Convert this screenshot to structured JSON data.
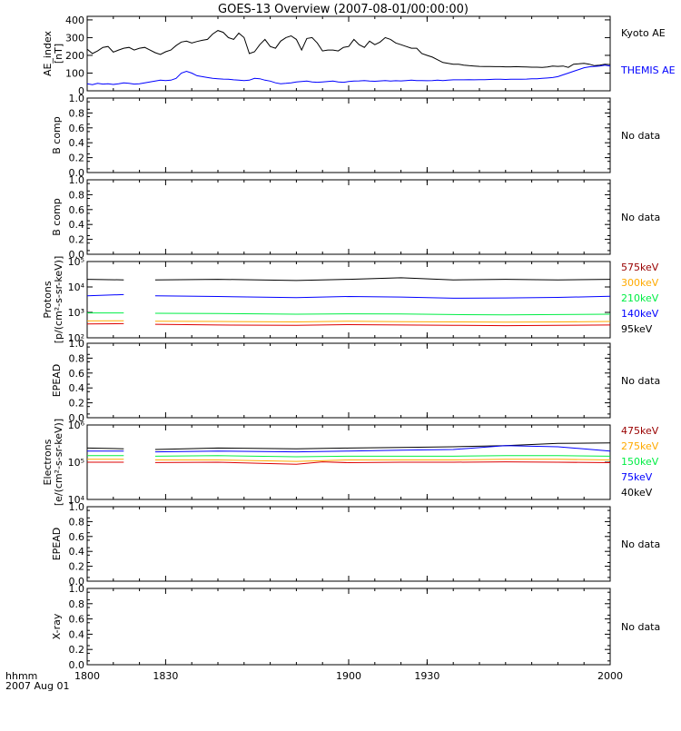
{
  "title": "GOES-13 Overview (2007-08-01/00:00:00)",
  "time_axis": {
    "range": [
      1800,
      2000
    ],
    "ticks": [
      "1800",
      "1830",
      "1900",
      "1930",
      "2000"
    ],
    "format_label": "hhmm",
    "date_label": "2007 Aug 01"
  },
  "no_data_text": "No data",
  "colors": {
    "black": "#000000",
    "blue": "#0000ff",
    "green": "#00ee44",
    "orange": "#ffaa00",
    "red": "#dd0000",
    "darkred": "#990000"
  },
  "chart_data": [
    {
      "type": "line",
      "id": "ae",
      "ylabel": [
        "AE_index",
        "[nT]"
      ],
      "ylim": [
        0,
        420
      ],
      "yscale": "linear",
      "yticks": [
        "0",
        "100",
        "200",
        "300",
        "400"
      ],
      "legend": [
        "Kyoto AE",
        "THEMIS AE"
      ],
      "series": [
        {
          "name": "Kyoto AE",
          "color": "#000000",
          "x": [
            1800,
            1802,
            1804,
            1806,
            1808,
            1810,
            1812,
            1814,
            1816,
            1818,
            1820,
            1822,
            1824,
            1826,
            1828,
            1830,
            1832,
            1834,
            1836,
            1838,
            1840,
            1842,
            1844,
            1846,
            1848,
            1850,
            1852,
            1854,
            1856,
            1858,
            1860,
            1862,
            1864,
            1866,
            1868,
            1870,
            1872,
            1874,
            1876,
            1878,
            1880,
            1882,
            1884,
            1886,
            1888,
            1890,
            1892,
            1894,
            1896,
            1898,
            1900,
            1902,
            1904,
            1906,
            1908,
            1910,
            1912,
            1914,
            1916,
            1918,
            1920,
            1922,
            1924,
            1926,
            1928,
            1930,
            1932,
            1934,
            1936,
            1938,
            1940,
            1942,
            1944,
            1946,
            1948,
            1950,
            1952,
            1954,
            1956,
            1958,
            1960,
            1962,
            1964,
            1966,
            1968,
            1970,
            1972,
            1974,
            1976,
            1978,
            1980,
            1982,
            1984,
            1986,
            1988,
            1990,
            1992,
            1994,
            1996,
            1998,
            2000
          ],
          "values": [
            235,
            210,
            225,
            245,
            250,
            218,
            230,
            240,
            245,
            230,
            240,
            245,
            230,
            215,
            205,
            220,
            230,
            255,
            275,
            280,
            270,
            278,
            285,
            290,
            320,
            340,
            330,
            300,
            290,
            325,
            300,
            210,
            220,
            260,
            290,
            250,
            240,
            280,
            300,
            310,
            290,
            230,
            295,
            300,
            270,
            225,
            230,
            230,
            225,
            245,
            250,
            290,
            260,
            245,
            280,
            260,
            275,
            300,
            290,
            270,
            260,
            250,
            240,
            240,
            210,
            200,
            190,
            175,
            160,
            155,
            150,
            150,
            145,
            142,
            140,
            138,
            137,
            137,
            136,
            136,
            135,
            135,
            136,
            135,
            134,
            133,
            133,
            132,
            134,
            140,
            138,
            140,
            132,
            150,
            152,
            155,
            150,
            142,
            145,
            150,
            148
          ]
        },
        {
          "name": "THEMIS AE",
          "color": "#0000ff",
          "x": [
            1800,
            1802,
            1804,
            1806,
            1808,
            1810,
            1812,
            1814,
            1816,
            1818,
            1820,
            1822,
            1824,
            1826,
            1828,
            1830,
            1832,
            1834,
            1836,
            1838,
            1840,
            1842,
            1844,
            1846,
            1848,
            1850,
            1852,
            1854,
            1856,
            1858,
            1860,
            1862,
            1864,
            1866,
            1868,
            1870,
            1872,
            1874,
            1876,
            1878,
            1880,
            1882,
            1884,
            1886,
            1888,
            1890,
            1892,
            1894,
            1896,
            1898,
            1900,
            1902,
            1904,
            1906,
            1908,
            1910,
            1912,
            1914,
            1916,
            1918,
            1920,
            1922,
            1924,
            1926,
            1928,
            1930,
            1932,
            1934,
            1936,
            1938,
            1940,
            1942,
            1944,
            1946,
            1948,
            1950,
            1952,
            1954,
            1956,
            1958,
            1960,
            1962,
            1964,
            1966,
            1968,
            1970,
            1972,
            1974,
            1976,
            1978,
            1980,
            1982,
            1984,
            1986,
            1988,
            1990,
            1992,
            1994,
            1996,
            1998,
            2000
          ],
          "values": [
            40,
            35,
            42,
            38,
            40,
            36,
            40,
            45,
            42,
            38,
            40,
            45,
            50,
            55,
            60,
            58,
            60,
            70,
            100,
            110,
            100,
            85,
            80,
            75,
            70,
            68,
            66,
            65,
            62,
            60,
            58,
            60,
            70,
            68,
            60,
            55,
            45,
            40,
            42,
            45,
            50,
            52,
            55,
            50,
            48,
            50,
            52,
            55,
            50,
            48,
            52,
            55,
            56,
            58,
            55,
            54,
            56,
            58,
            55,
            57,
            56,
            58,
            60,
            58,
            58,
            57,
            58,
            60,
            58,
            60,
            62,
            62,
            62,
            63,
            62,
            63,
            63,
            64,
            65,
            65,
            64,
            65,
            65,
            65,
            66,
            68,
            68,
            70,
            72,
            75,
            80,
            90,
            100,
            110,
            120,
            130,
            135,
            138,
            140,
            145,
            140
          ]
        }
      ]
    },
    {
      "type": "line",
      "id": "bcomp1",
      "ylabel": [
        "B comp"
      ],
      "ylim": [
        0,
        1
      ],
      "yscale": "linear",
      "yticks": [
        "0.0",
        "0.2",
        "0.4",
        "0.6",
        "0.8",
        "1.0"
      ],
      "series": [],
      "annotation": "No data"
    },
    {
      "type": "line",
      "id": "bcomp2",
      "ylabel": [
        "B comp"
      ],
      "ylim": [
        0,
        1
      ],
      "yscale": "linear",
      "yticks": [
        "0.0",
        "0.2",
        "0.4",
        "0.6",
        "0.8",
        "1.0"
      ],
      "series": [],
      "annotation": "No data"
    },
    {
      "type": "line",
      "id": "protons",
      "ylabel": [
        "Protons",
        "[p/(cm²-s-sr-keV)]"
      ],
      "ylim": [
        100,
        100000
      ],
      "yscale": "log",
      "yticks": [
        "10²",
        "10³",
        "10⁴",
        "10⁵"
      ],
      "gap": [
        1814,
        1826
      ],
      "legend": [
        "575keV",
        "300keV",
        "210keV",
        "140keV",
        "95keV"
      ],
      "series": [
        {
          "name": "95keV",
          "color": "#000000",
          "x": [
            1800,
            1814,
            1826,
            1850,
            1880,
            1900,
            1920,
            1940,
            1960,
            1980,
            2000
          ],
          "values": [
            20000,
            19000,
            19000,
            20000,
            18000,
            20000,
            23000,
            19000,
            20000,
            19000,
            20000
          ]
        },
        {
          "name": "140keV",
          "color": "#0000ff",
          "x": [
            1800,
            1814,
            1826,
            1850,
            1880,
            1900,
            1920,
            1940,
            1960,
            1980,
            2000
          ],
          "values": [
            4500,
            5000,
            4500,
            4200,
            3800,
            4200,
            4000,
            3600,
            3700,
            3900,
            4300
          ]
        },
        {
          "name": "210keV",
          "color": "#00ee44",
          "x": [
            1800,
            1814,
            1826,
            1850,
            1880,
            1900,
            1920,
            1940,
            1960,
            1980,
            2000
          ],
          "values": [
            950,
            950,
            920,
            900,
            850,
            880,
            860,
            820,
            800,
            820,
            850
          ]
        },
        {
          "name": "300keV",
          "color": "#ffaa00",
          "x": [
            1800,
            1814,
            1826,
            1850,
            1880,
            1900,
            1920,
            1940,
            1960,
            1980,
            2000
          ],
          "values": [
            460,
            470,
            450,
            440,
            420,
            450,
            430,
            420,
            410,
            420,
            440
          ]
        },
        {
          "name": "575keV",
          "color": "#dd0000",
          "x": [
            1800,
            1814,
            1826,
            1850,
            1880,
            1900,
            1920,
            1940,
            1960,
            1980,
            2000
          ],
          "values": [
            350,
            360,
            340,
            320,
            310,
            330,
            320,
            310,
            300,
            310,
            320
          ]
        }
      ]
    },
    {
      "type": "line",
      "id": "epead1",
      "ylabel": [
        "EPEAD"
      ],
      "ylim": [
        0,
        1
      ],
      "yscale": "linear",
      "yticks": [
        "0.0",
        "0.2",
        "0.4",
        "0.6",
        "0.8",
        "1.0"
      ],
      "series": [],
      "annotation": "No data"
    },
    {
      "type": "line",
      "id": "electrons",
      "ylabel": [
        "Electrons",
        "[e/(cm²-s-sr-keV)]"
      ],
      "ylim": [
        10000,
        1000000
      ],
      "yscale": "log",
      "yticks": [
        "10⁴",
        "10⁵",
        "10⁶"
      ],
      "gap": [
        1814,
        1826
      ],
      "legend": [
        "475keV",
        "275keV",
        "150keV",
        "75keV",
        "40keV"
      ],
      "series": [
        {
          "name": "40keV",
          "color": "#000000",
          "x": [
            1800,
            1814,
            1826,
            1850,
            1880,
            1900,
            1920,
            1940,
            1960,
            1980,
            2000
          ],
          "values": [
            240000,
            230000,
            220000,
            240000,
            230000,
            240000,
            250000,
            260000,
            280000,
            320000,
            330000
          ]
        },
        {
          "name": "75keV",
          "color": "#0000ff",
          "x": [
            1800,
            1814,
            1826,
            1850,
            1880,
            1900,
            1920,
            1940,
            1960,
            1980,
            2000
          ],
          "values": [
            200000,
            200000,
            190000,
            200000,
            190000,
            200000,
            210000,
            220000,
            280000,
            260000,
            200000
          ]
        },
        {
          "name": "150keV",
          "color": "#00ee44",
          "x": [
            1800,
            1814,
            1826,
            1850,
            1880,
            1900,
            1920,
            1940,
            1960,
            1980,
            2000
          ],
          "values": [
            150000,
            150000,
            145000,
            150000,
            140000,
            145000,
            145000,
            145000,
            150000,
            150000,
            145000
          ]
        },
        {
          "name": "275keV",
          "color": "#ffaa00",
          "x": [
            1800,
            1814,
            1826,
            1850,
            1880,
            1900,
            1920,
            1940,
            1960,
            1980,
            2000
          ],
          "values": [
            120000,
            120000,
            115000,
            115000,
            105000,
            115000,
            115000,
            115000,
            120000,
            120000,
            115000
          ]
        },
        {
          "name": "475keV",
          "color": "#dd0000",
          "x": [
            1800,
            1814,
            1826,
            1850,
            1880,
            1890,
            1900,
            1920,
            1940,
            1960,
            1980,
            2000
          ],
          "values": [
            100000,
            100000,
            98000,
            100000,
            88000,
            102000,
            97000,
            100000,
            100000,
            102000,
            100000,
            97000
          ]
        }
      ]
    },
    {
      "type": "line",
      "id": "epead2",
      "ylabel": [
        "EPEAD"
      ],
      "ylim": [
        0,
        1
      ],
      "yscale": "linear",
      "yticks": [
        "0.0",
        "0.2",
        "0.4",
        "0.6",
        "0.8",
        "1.0"
      ],
      "series": [],
      "annotation": "No data"
    },
    {
      "type": "line",
      "id": "xray",
      "ylabel": [
        "X-ray"
      ],
      "ylim": [
        0,
        1
      ],
      "yscale": "linear",
      "yticks": [
        "0.0",
        "0.2",
        "0.4",
        "0.6",
        "0.8",
        "1.0"
      ],
      "series": [],
      "annotation": "No data"
    }
  ]
}
